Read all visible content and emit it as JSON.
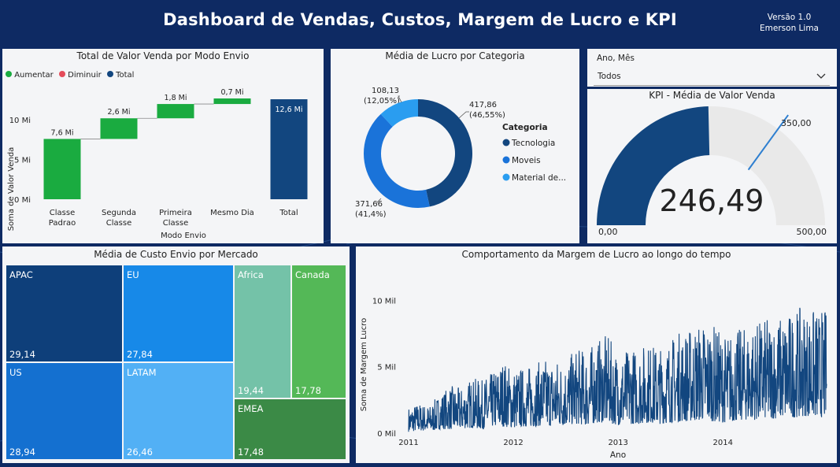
{
  "header": {
    "title": "Dashboard de Vendas, Custos, Margem de Lucro e KPI",
    "version_line1": "Versão 1.0",
    "version_line2": "Emerson Lima"
  },
  "waterfall": {
    "title": "Total de Valor Venda por Modo Envio",
    "legend": [
      {
        "label": "Aumentar",
        "color": "#1aab40"
      },
      {
        "label": "Diminuir",
        "color": "#e44c5a"
      },
      {
        "label": "Total",
        "color": "#12467f"
      }
    ],
    "xlabel": "Modo Envio",
    "ylabel": "Soma de Valor Venda"
  },
  "donut": {
    "title": "Média de Lucro por Categoria",
    "legend_title": "Categoria",
    "labels": [
      {
        "value": "417,86",
        "pct": "(46,55%)"
      },
      {
        "value": "371,66",
        "pct": "(41,4%)"
      },
      {
        "value": "108,13",
        "pct": "(12,05%)"
      }
    ],
    "legend": [
      "Tecnologia",
      "Moveis",
      "Material de..."
    ]
  },
  "slicer": {
    "label": "Ano, Mês",
    "value": "Todos"
  },
  "kpi": {
    "title": "KPI - Média de Valor Venda",
    "value": "246,49",
    "target_label": "350,00",
    "min_label": "0,00",
    "max_label": "500,00"
  },
  "treemap": {
    "title": "Média de Custo Envio por Mercado",
    "tiles": [
      {
        "name": "APAC",
        "value": "29,14",
        "color": "#0e3f7a"
      },
      {
        "name": "EU",
        "value": "27,84",
        "color": "#1789e8"
      },
      {
        "name": "US",
        "value": "28,94",
        "color": "#1470d0"
      },
      {
        "name": "LATAM",
        "value": "26,46",
        "color": "#52b0f5"
      },
      {
        "name": "Africa",
        "value": "19,44",
        "color": "#74c2a8"
      },
      {
        "name": "Canada",
        "value": "17,78",
        "color": "#54b857"
      },
      {
        "name": "EMEA",
        "value": "17,48",
        "color": "#3b8a46"
      }
    ]
  },
  "line": {
    "title": "Comportamento da Margem de Lucro ao longo do tempo",
    "xlabel": "Ano",
    "ylabel": "Soma de Margem Lucro"
  },
  "chart_data": [
    {
      "type": "bar",
      "subtype": "waterfall",
      "title": "Total de Valor Venda por Modo Envio",
      "xlabel": "Modo Envio",
      "ylabel": "Soma de Valor Venda",
      "categories": [
        "Classe Padrao",
        "Segunda Classe",
        "Primeira Classe",
        "Mesmo Dia",
        "Total"
      ],
      "values": [
        7.6,
        2.6,
        1.8,
        0.7,
        12.6
      ],
      "data_labels": [
        "7,6 Mi",
        "2,6 Mi",
        "1,8 Mi",
        "0,7 Mi",
        "12,6 Mi"
      ],
      "yticks": [
        "0 Mi",
        "5 Mi",
        "10 Mi"
      ],
      "ylim": [
        0,
        13
      ]
    },
    {
      "type": "pie",
      "subtype": "donut",
      "title": "Média de Lucro por Categoria",
      "categories": [
        "Tecnologia",
        "Moveis",
        "Material de..."
      ],
      "values": [
        417.86,
        371.66,
        108.13
      ],
      "colors": [
        "#12467f",
        "#1a73d9",
        "#2a9df0"
      ]
    },
    {
      "type": "line",
      "title": "Comportamento da Margem de Lucro ao longo do tempo",
      "xlabel": "Ano",
      "ylabel": "Soma de Margem Lucro",
      "xticks": [
        "2011",
        "2012",
        "2013",
        "2014"
      ],
      "yticks": [
        "0 Mil",
        "5 Mil",
        "10 Mil"
      ],
      "ylim": [
        0,
        11800
      ],
      "xlim": [
        2011.0,
        2014.99
      ],
      "series": [
        {
          "x": [
            2011.0,
            2011.1,
            2011.2,
            2011.3,
            2011.4,
            2011.5,
            2011.6,
            2011.7,
            2011.8,
            2011.9,
            2012.0,
            2012.1,
            2012.2,
            2012.3,
            2012.4,
            2012.5,
            2012.6,
            2012.7,
            2012.8,
            2012.9,
            2013.0,
            2013.1,
            2013.2,
            2013.3,
            2013.4,
            2013.5,
            2013.6,
            2013.7,
            2013.8,
            2013.9,
            2014.0,
            2014.1,
            2014.2,
            2014.3,
            2014.4,
            2014.5,
            2014.6,
            2014.7,
            2014.8,
            2014.9
          ],
          "y": [
            2000,
            2300,
            2100,
            3000,
            3600,
            3400,
            4200,
            4000,
            4600,
            5600,
            4900,
            5000,
            5200,
            5600,
            5700,
            5500,
            6400,
            6300,
            7000,
            7400,
            6000,
            6400,
            6600,
            6800,
            6500,
            7200,
            7800,
            8000,
            8500,
            8300,
            7400,
            7700,
            8000,
            8300,
            8600,
            8800,
            9000,
            9400,
            9500,
            9300
          ],
          "y_min": [
            100,
            200,
            150,
            300,
            300,
            350,
            400,
            300,
            500,
            500,
            400,
            500,
            500,
            600,
            500,
            600,
            700,
            600,
            800,
            800,
            600,
            700,
            700,
            800,
            700,
            800,
            900,
            900,
            1000,
            900,
            800,
            900,
            1000,
            1000,
            1100,
            1100,
            1200,
            1200,
            1300,
            1200
          ]
        }
      ]
    }
  ]
}
